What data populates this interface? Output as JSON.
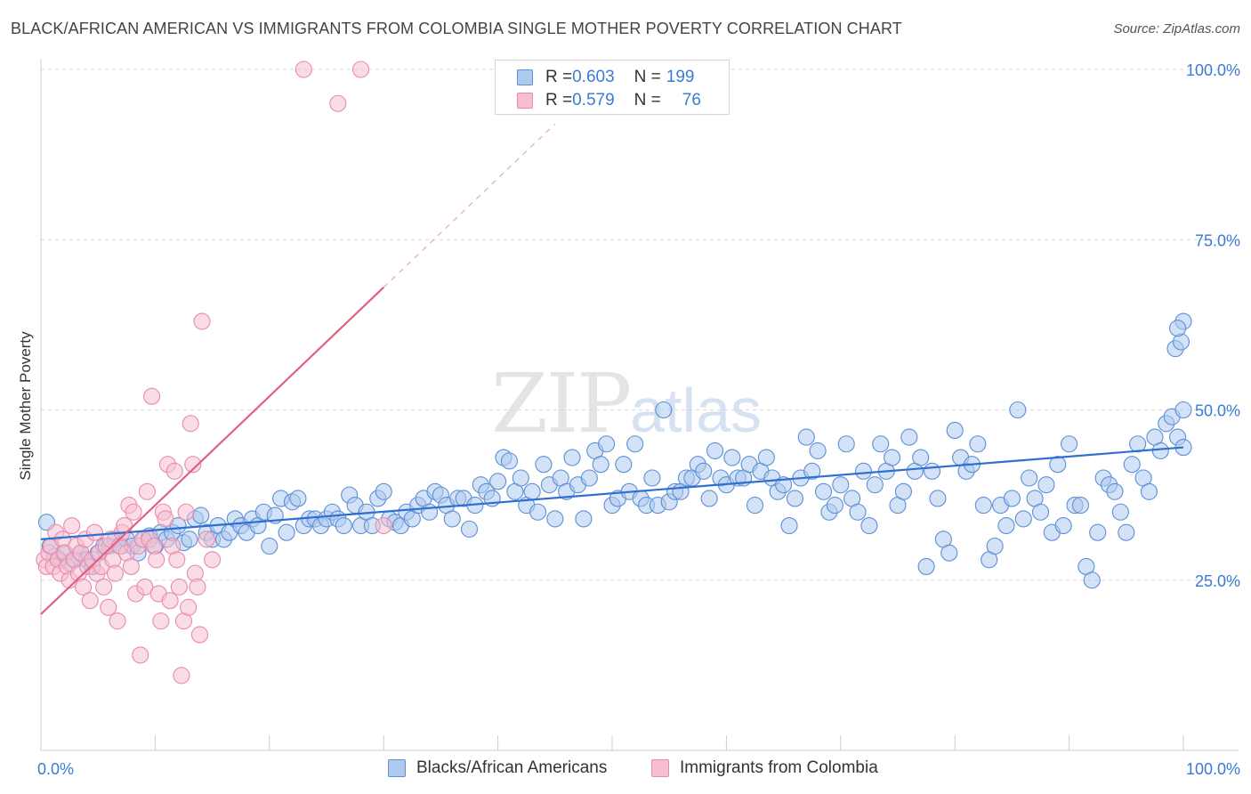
{
  "title": "BLACK/AFRICAN AMERICAN VS IMMIGRANTS FROM COLOMBIA SINGLE MOTHER POVERTY CORRELATION CHART",
  "source": "Source: ZipAtlas.com",
  "watermark": {
    "zip": "ZIP",
    "atlas": "atlas"
  },
  "legend_box": {
    "rows": [
      {
        "r_label": "R = ",
        "r_value": "0.603",
        "n_label": "N = ",
        "n_value": "199"
      },
      {
        "r_label": "R = ",
        "r_value": "0.579",
        "n_label": "N = ",
        "n_value": "76"
      }
    ]
  },
  "colors": {
    "blue_fill": "#aecbee",
    "blue_stroke": "#5b8fd6",
    "blue_line": "#2f6fd0",
    "pink_fill": "#f6bfd1",
    "pink_stroke": "#e98aa9",
    "pink_line": "#e0607f",
    "axis_label": "#3a7bd5",
    "grid": "#d8d8d8"
  },
  "chart_data": {
    "type": "scatter",
    "title": "BLACK/AFRICAN AMERICAN VS IMMIGRANTS FROM COLOMBIA SINGLE MOTHER POVERTY CORRELATION CHART",
    "xlabel": "",
    "ylabel": "Single Mother Poverty",
    "xlim": [
      0,
      100
    ],
    "ylim": [
      0,
      100
    ],
    "x_tick_labels": [
      "0.0%",
      "100.0%"
    ],
    "y_ticks": [
      25,
      50,
      75,
      100
    ],
    "y_tick_labels": [
      "25.0%",
      "50.0%",
      "75.0%",
      "100.0%"
    ],
    "grid": true,
    "series": [
      {
        "name": "Blacks/African Americans",
        "color": "#5b8fd6",
        "r": 0.603,
        "n": 199,
        "trend": {
          "x": [
            0,
            100
          ],
          "y": [
            31.0,
            44.5
          ]
        },
        "points": [
          [
            0.5,
            33.5
          ],
          [
            0.8,
            30
          ],
          [
            1.2,
            28.5
          ],
          [
            1.6,
            28
          ],
          [
            2,
            29
          ],
          [
            2.5,
            27.5
          ],
          [
            3,
            28
          ],
          [
            3.5,
            29
          ],
          [
            4,
            28
          ],
          [
            4.5,
            27
          ],
          [
            5,
            29
          ],
          [
            5.5,
            30
          ],
          [
            6,
            30
          ],
          [
            6.5,
            31
          ],
          [
            7,
            30
          ],
          [
            7.5,
            31
          ],
          [
            8,
            30
          ],
          [
            8.5,
            29
          ],
          [
            9,
            31
          ],
          [
            9.5,
            31.5
          ],
          [
            10,
            30
          ],
          [
            10.5,
            32
          ],
          [
            11,
            31
          ],
          [
            11.5,
            32
          ],
          [
            12,
            33
          ],
          [
            12.5,
            30.5
          ],
          [
            13,
            31
          ],
          [
            13.5,
            34
          ],
          [
            14,
            34.5
          ],
          [
            14.5,
            32
          ],
          [
            15,
            31
          ],
          [
            15.5,
            33
          ],
          [
            16,
            31
          ],
          [
            16.5,
            32
          ],
          [
            17,
            34
          ],
          [
            17.5,
            33
          ],
          [
            18,
            32
          ],
          [
            18.5,
            34
          ],
          [
            19,
            33
          ],
          [
            19.5,
            35
          ],
          [
            20,
            30
          ],
          [
            20.5,
            34.5
          ],
          [
            21,
            37
          ],
          [
            21.5,
            32
          ],
          [
            22,
            36.5
          ],
          [
            22.5,
            37
          ],
          [
            23,
            33
          ],
          [
            23.5,
            34
          ],
          [
            24,
            34
          ],
          [
            24.5,
            33
          ],
          [
            25,
            34
          ],
          [
            25.5,
            35
          ],
          [
            26,
            34
          ],
          [
            26.5,
            33
          ],
          [
            27,
            37.5
          ],
          [
            27.5,
            36
          ],
          [
            28,
            33
          ],
          [
            28.5,
            35
          ],
          [
            29,
            33
          ],
          [
            29.5,
            37
          ],
          [
            30,
            38
          ],
          [
            30.5,
            34
          ],
          [
            31,
            33.5
          ],
          [
            31.5,
            33
          ],
          [
            32,
            35
          ],
          [
            32.5,
            34
          ],
          [
            33,
            36
          ],
          [
            33.5,
            37
          ],
          [
            34,
            35
          ],
          [
            34.5,
            38
          ],
          [
            35,
            37.5
          ],
          [
            35.5,
            36
          ],
          [
            36,
            34
          ],
          [
            36.5,
            37
          ],
          [
            37,
            37
          ],
          [
            37.5,
            32.5
          ],
          [
            38,
            36
          ],
          [
            38.5,
            39
          ],
          [
            39,
            38
          ],
          [
            39.5,
            37
          ],
          [
            40,
            39.5
          ],
          [
            40.5,
            43
          ],
          [
            41,
            42.5
          ],
          [
            41.5,
            38
          ],
          [
            42,
            40
          ],
          [
            42.5,
            36
          ],
          [
            43,
            38
          ],
          [
            43.5,
            35
          ],
          [
            44,
            42
          ],
          [
            44.5,
            39
          ],
          [
            45,
            34
          ],
          [
            45.5,
            40
          ],
          [
            46,
            38
          ],
          [
            46.5,
            43
          ],
          [
            47,
            39
          ],
          [
            47.5,
            34
          ],
          [
            48,
            40
          ],
          [
            48.5,
            44
          ],
          [
            49,
            42
          ],
          [
            49.5,
            45
          ],
          [
            50,
            36
          ],
          [
            50.5,
            37
          ],
          [
            51,
            42
          ],
          [
            51.5,
            38
          ],
          [
            52,
            45
          ],
          [
            52.5,
            37
          ],
          [
            53,
            36
          ],
          [
            53.5,
            40
          ],
          [
            54,
            36
          ],
          [
            54.5,
            50
          ],
          [
            55,
            36.5
          ],
          [
            55.5,
            38
          ],
          [
            56,
            38
          ],
          [
            56.5,
            40
          ],
          [
            57,
            40
          ],
          [
            57.5,
            42
          ],
          [
            58,
            41
          ],
          [
            58.5,
            37
          ],
          [
            59,
            44
          ],
          [
            59.5,
            40
          ],
          [
            60,
            39
          ],
          [
            60.5,
            43
          ],
          [
            61,
            40
          ],
          [
            61.5,
            40
          ],
          [
            62,
            42
          ],
          [
            62.5,
            36
          ],
          [
            63,
            41
          ],
          [
            63.5,
            43
          ],
          [
            64,
            40
          ],
          [
            64.5,
            38
          ],
          [
            65,
            39
          ],
          [
            65.5,
            33
          ],
          [
            66,
            37
          ],
          [
            66.5,
            40
          ],
          [
            67,
            46
          ],
          [
            67.5,
            41
          ],
          [
            68,
            44
          ],
          [
            68.5,
            38
          ],
          [
            69,
            35
          ],
          [
            69.5,
            36
          ],
          [
            70,
            39
          ],
          [
            70.5,
            45
          ],
          [
            71,
            37
          ],
          [
            71.5,
            35
          ],
          [
            72,
            41
          ],
          [
            72.5,
            33
          ],
          [
            73,
            39
          ],
          [
            73.5,
            45
          ],
          [
            74,
            41
          ],
          [
            74.5,
            43
          ],
          [
            75,
            36
          ],
          [
            75.5,
            38
          ],
          [
            76,
            46
          ],
          [
            76.5,
            41
          ],
          [
            77,
            43
          ],
          [
            77.5,
            27
          ],
          [
            78,
            41
          ],
          [
            78.5,
            37
          ],
          [
            79,
            31
          ],
          [
            79.5,
            29
          ],
          [
            80,
            47
          ],
          [
            80.5,
            43
          ],
          [
            81,
            41
          ],
          [
            81.5,
            42
          ],
          [
            82,
            45
          ],
          [
            82.5,
            36
          ],
          [
            83,
            28
          ],
          [
            83.5,
            30
          ],
          [
            84,
            36
          ],
          [
            84.5,
            33
          ],
          [
            85,
            37
          ],
          [
            85.5,
            50
          ],
          [
            86,
            34
          ],
          [
            86.5,
            40
          ],
          [
            87,
            37
          ],
          [
            87.5,
            35
          ],
          [
            88,
            39
          ],
          [
            88.5,
            32
          ],
          [
            89,
            42
          ],
          [
            89.5,
            33
          ],
          [
            90,
            45
          ],
          [
            90.5,
            36
          ],
          [
            91,
            36
          ],
          [
            91.5,
            27
          ],
          [
            92,
            25
          ],
          [
            92.5,
            32
          ],
          [
            93,
            40
          ],
          [
            93.5,
            39
          ],
          [
            94,
            38
          ],
          [
            94.5,
            35
          ],
          [
            95,
            32
          ],
          [
            95.5,
            42
          ],
          [
            96,
            45
          ],
          [
            96.5,
            40
          ],
          [
            97,
            38
          ],
          [
            97.5,
            46
          ],
          [
            98,
            44
          ],
          [
            98.5,
            48
          ],
          [
            99,
            49
          ],
          [
            99.5,
            46
          ],
          [
            100,
            63
          ],
          [
            99.3,
            59
          ],
          [
            99.8,
            60
          ],
          [
            100,
            50
          ],
          [
            99.5,
            62
          ],
          [
            100,
            44.5
          ]
        ]
      },
      {
        "name": "Immigrants from Colombia",
        "color": "#e98aa9",
        "r": 0.579,
        "n": 76,
        "trend": {
          "x": [
            0,
            30
          ],
          "y": [
            20.0,
            68.0
          ],
          "dashed_to": {
            "x": 45,
            "y": 92
          }
        },
        "points": [
          [
            0.3,
            28
          ],
          [
            0.5,
            27
          ],
          [
            0.7,
            29
          ],
          [
            0.9,
            30
          ],
          [
            1.1,
            27
          ],
          [
            1.3,
            32
          ],
          [
            1.5,
            28
          ],
          [
            1.7,
            26
          ],
          [
            1.9,
            31
          ],
          [
            2.1,
            29
          ],
          [
            2.3,
            27
          ],
          [
            2.5,
            25
          ],
          [
            2.7,
            33
          ],
          [
            2.9,
            28
          ],
          [
            3.1,
            30
          ],
          [
            3.3,
            26
          ],
          [
            3.5,
            29
          ],
          [
            3.7,
            24
          ],
          [
            3.9,
            31
          ],
          [
            4.1,
            27
          ],
          [
            4.3,
            22
          ],
          [
            4.5,
            28
          ],
          [
            4.7,
            32
          ],
          [
            4.9,
            26
          ],
          [
            5.1,
            29
          ],
          [
            5.3,
            27
          ],
          [
            5.5,
            24
          ],
          [
            5.7,
            30
          ],
          [
            5.9,
            21
          ],
          [
            6.1,
            31
          ],
          [
            6.3,
            28
          ],
          [
            6.5,
            26
          ],
          [
            6.7,
            19
          ],
          [
            6.9,
            30
          ],
          [
            7.1,
            32
          ],
          [
            7.3,
            33
          ],
          [
            7.5,
            29
          ],
          [
            7.7,
            36
          ],
          [
            7.9,
            27
          ],
          [
            8.1,
            35
          ],
          [
            8.3,
            23
          ],
          [
            8.5,
            30
          ],
          [
            8.7,
            14
          ],
          [
            8.9,
            31
          ],
          [
            9.1,
            24
          ],
          [
            9.3,
            38
          ],
          [
            9.5,
            31
          ],
          [
            9.7,
            52
          ],
          [
            9.9,
            30
          ],
          [
            10.1,
            28
          ],
          [
            10.3,
            23
          ],
          [
            10.5,
            19
          ],
          [
            10.7,
            35
          ],
          [
            10.9,
            34
          ],
          [
            11.1,
            42
          ],
          [
            11.3,
            22
          ],
          [
            11.5,
            30
          ],
          [
            11.7,
            41
          ],
          [
            11.9,
            28
          ],
          [
            12.1,
            24
          ],
          [
            12.3,
            11
          ],
          [
            12.5,
            19
          ],
          [
            12.7,
            35
          ],
          [
            12.9,
            21
          ],
          [
            13.1,
            48
          ],
          [
            13.3,
            42
          ],
          [
            13.5,
            26
          ],
          [
            13.7,
            24
          ],
          [
            13.9,
            17
          ],
          [
            14.1,
            63
          ],
          [
            14.5,
            31
          ],
          [
            15,
            28
          ],
          [
            23,
            100
          ],
          [
            28,
            100
          ],
          [
            26,
            95
          ],
          [
            30,
            33
          ]
        ]
      }
    ]
  },
  "bottom_legend": [
    {
      "label": "Blacks/African Americans"
    },
    {
      "label": "Immigrants from Colombia"
    }
  ]
}
